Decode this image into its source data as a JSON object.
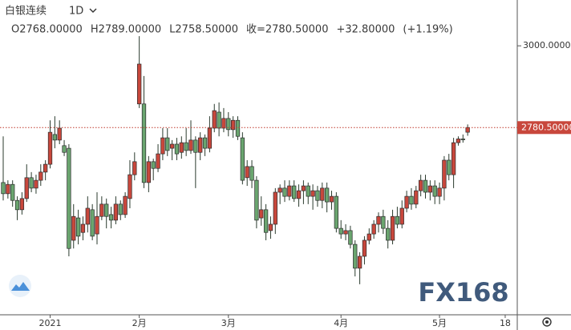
{
  "chart_data": {
    "type": "candlestick",
    "title": "白银连续",
    "interval": "1D",
    "legend_texts": [
      "O2768.00000",
      "H2789.00000",
      "L2758.50000",
      "收=2780.50000",
      "+32.80000",
      "(+1.19%)"
    ],
    "watermark": "FX168",
    "up_color": "#c8473c",
    "down_color": "#6aa56f",
    "ylim": [
      2278,
      3123
    ],
    "yticks": [
      {
        "value": 3000,
        "label": "3000.00000"
      }
    ],
    "last_price": {
      "value": 2780.5,
      "label": "2780.50000"
    },
    "categories": [
      null,
      null,
      null,
      null,
      null,
      null,
      null,
      null,
      null,
      null,
      "2021",
      null,
      null,
      null,
      null,
      null,
      null,
      null,
      null,
      null,
      null,
      null,
      null,
      null,
      null,
      null,
      null,
      null,
      null,
      "2月",
      null,
      null,
      null,
      null,
      null,
      null,
      null,
      null,
      null,
      null,
      null,
      null,
      null,
      null,
      null,
      null,
      null,
      null,
      "3月",
      null,
      null,
      null,
      null,
      null,
      null,
      null,
      null,
      null,
      null,
      null,
      null,
      null,
      null,
      null,
      null,
      null,
      null,
      null,
      null,
      null,
      null,
      null,
      "4月",
      null,
      null,
      null,
      null,
      null,
      null,
      null,
      null,
      null,
      null,
      null,
      null,
      null,
      null,
      null,
      null,
      null,
      null,
      null,
      null,
      "5月",
      null,
      null,
      null,
      null,
      null,
      null,
      null,
      null,
      null,
      null,
      null,
      null,
      null,
      "18"
    ],
    "open": [
      2633,
      2603,
      2628,
      2585,
      2560,
      2590,
      2646,
      2618,
      2639,
      2661,
      2682,
      2762,
      2747,
      2732,
      2725,
      2478,
      2538,
      2499,
      2521,
      2560,
      2495,
      2542,
      2575,
      2547,
      2532,
      2575,
      2547,
      2590,
      2654,
      2844,
      2844,
      2633,
      2689,
      2671,
      2710,
      2753,
      2725,
      2736,
      2714,
      2740,
      2719,
      2747,
      2714,
      2753,
      2725,
      2779,
      2822,
      2779,
      2805,
      2775,
      2800,
      2753,
      2646,
      2676,
      2639,
      2538,
      2560,
      2504,
      2521,
      2607,
      2618,
      2596,
      2624,
      2590,
      2611,
      2624,
      2596,
      2611,
      2585,
      2618,
      2581,
      2596,
      2510,
      2495,
      2504,
      2467,
      2403,
      2435,
      2478,
      2495,
      2521,
      2542,
      2510,
      2478,
      2542,
      2521,
      2564,
      2596,
      2575,
      2611,
      2639,
      2607,
      2624,
      2596,
      2618,
      2693,
      2654,
      2740,
      2750,
      2768,
      null,
      null,
      null,
      null,
      null,
      null,
      null,
      null
    ],
    "high": [
      2757,
      2639,
      2639,
      2596,
      2607,
      2682,
      2661,
      2654,
      2682,
      2693,
      2800,
      2811,
      2800,
      2747,
      2736,
      2575,
      2560,
      2542,
      2596,
      2575,
      2607,
      2596,
      2590,
      2568,
      2596,
      2585,
      2607,
      2693,
      2714,
      3026,
      2919,
      2704,
      2697,
      2736,
      2779,
      2779,
      2747,
      2753,
      2757,
      2779,
      2800,
      2757,
      2768,
      2762,
      2811,
      2844,
      2848,
      2833,
      2822,
      2811,
      2811,
      2768,
      2693,
      2693,
      2650,
      2596,
      2575,
      2542,
      2618,
      2628,
      2639,
      2639,
      2639,
      2628,
      2639,
      2633,
      2628,
      2624,
      2633,
      2633,
      2611,
      2607,
      2532,
      2521,
      2517,
      2478,
      2446,
      2489,
      2510,
      2532,
      2553,
      2560,
      2532,
      2560,
      2568,
      2585,
      2611,
      2618,
      2624,
      2654,
      2654,
      2639,
      2639,
      2633,
      2704,
      2710,
      2753,
      2757,
      2762,
      2789,
      null,
      null,
      null,
      null,
      null,
      null,
      null,
      null
    ],
    "low": [
      2585,
      2590,
      2568,
      2532,
      2547,
      2581,
      2607,
      2603,
      2624,
      2639,
      2671,
      2725,
      2736,
      2704,
      2435,
      2456,
      2467,
      2478,
      2499,
      2478,
      2467,
      2532,
      2510,
      2510,
      2521,
      2532,
      2538,
      2564,
      2639,
      2833,
      2618,
      2607,
      2639,
      2661,
      2693,
      2704,
      2693,
      2693,
      2697,
      2704,
      2710,
      2618,
      2693,
      2704,
      2714,
      2768,
      2757,
      2768,
      2757,
      2753,
      2747,
      2628,
      2624,
      2618,
      2510,
      2517,
      2478,
      2482,
      2495,
      2575,
      2581,
      2585,
      2581,
      2568,
      2575,
      2575,
      2560,
      2568,
      2564,
      2553,
      2560,
      2499,
      2482,
      2478,
      2456,
      2381,
      2360,
      2413,
      2467,
      2482,
      2499,
      2495,
      2456,
      2467,
      2510,
      2510,
      2553,
      2560,
      2564,
      2596,
      2590,
      2585,
      2575,
      2575,
      2585,
      2639,
      2618,
      2732,
      2740,
      2758.5,
      null,
      null,
      null,
      null,
      null,
      null,
      null,
      null
    ],
    "close": [
      2603,
      2628,
      2585,
      2560,
      2590,
      2646,
      2618,
      2639,
      2661,
      2682,
      2768,
      2747,
      2779,
      2714,
      2456,
      2542,
      2489,
      2521,
      2564,
      2489,
      2542,
      2575,
      2542,
      2532,
      2575,
      2547,
      2596,
      2654,
      2689,
      2951,
      2633,
      2689,
      2671,
      2710,
      2753,
      2719,
      2736,
      2710,
      2740,
      2719,
      2747,
      2714,
      2753,
      2725,
      2779,
      2826,
      2779,
      2805,
      2775,
      2800,
      2757,
      2639,
      2676,
      2639,
      2532,
      2560,
      2499,
      2521,
      2607,
      2618,
      2596,
      2624,
      2590,
      2611,
      2624,
      2596,
      2611,
      2585,
      2618,
      2581,
      2596,
      2510,
      2495,
      2504,
      2467,
      2403,
      2435,
      2478,
      2495,
      2521,
      2542,
      2510,
      2478,
      2542,
      2521,
      2564,
      2596,
      2575,
      2611,
      2639,
      2607,
      2624,
      2596,
      2618,
      2693,
      2654,
      2740,
      2750,
      2747.7,
      2780.5,
      null,
      null,
      null,
      null,
      null,
      null,
      null,
      null
    ]
  }
}
